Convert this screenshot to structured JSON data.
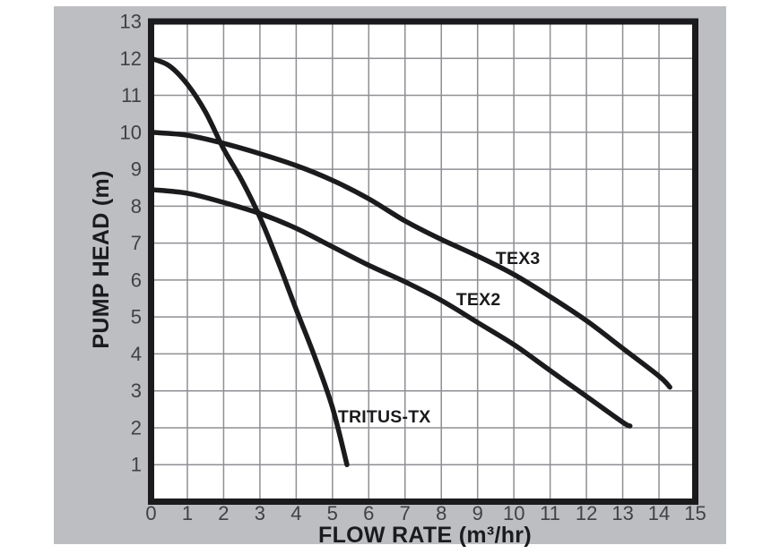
{
  "chart_data": {
    "type": "line",
    "title": "",
    "xlabel": "FLOW RATE (m³/hr)",
    "ylabel": "PUMP HEAD (m)",
    "xlim": [
      0,
      15
    ],
    "ylim": [
      0,
      13
    ],
    "x_ticks": [
      0,
      1,
      2,
      3,
      4,
      5,
      6,
      7,
      8,
      9,
      10,
      11,
      12,
      13,
      14,
      15
    ],
    "y_ticks": [
      1,
      2,
      3,
      4,
      5,
      6,
      7,
      8,
      9,
      10,
      11,
      12,
      13
    ],
    "grid": true,
    "legend_position": "inline-labels",
    "series": [
      {
        "name": "TRITUS-TX",
        "points": [
          [
            0,
            12
          ],
          [
            0.5,
            11.8
          ],
          [
            1,
            11.3
          ],
          [
            1.5,
            10.55
          ],
          [
            2,
            9.55
          ],
          [
            2.5,
            8.7
          ],
          [
            3,
            7.7
          ],
          [
            3.5,
            6.5
          ],
          [
            4,
            5.2
          ],
          [
            4.5,
            3.95
          ],
          [
            5,
            2.55
          ],
          [
            5.4,
            1.0
          ]
        ],
        "label_at": [
          5.15,
          2.14
        ]
      },
      {
        "name": "TEX2",
        "points": [
          [
            0,
            8.45
          ],
          [
            1,
            8.35
          ],
          [
            2,
            8.1
          ],
          [
            3,
            7.8
          ],
          [
            4,
            7.4
          ],
          [
            5,
            6.9
          ],
          [
            6,
            6.4
          ],
          [
            7,
            5.95
          ],
          [
            8,
            5.45
          ],
          [
            9,
            4.85
          ],
          [
            10,
            4.25
          ],
          [
            11,
            3.55
          ],
          [
            12,
            2.85
          ],
          [
            13,
            2.15
          ],
          [
            13.2,
            2.05
          ]
        ],
        "label_at": [
          8.41,
          5.32
        ]
      },
      {
        "name": "TEX3",
        "points": [
          [
            0,
            10
          ],
          [
            1,
            9.92
          ],
          [
            2,
            9.7
          ],
          [
            3,
            9.42
          ],
          [
            4,
            9.1
          ],
          [
            5,
            8.7
          ],
          [
            6,
            8.2
          ],
          [
            7,
            7.6
          ],
          [
            8,
            7.1
          ],
          [
            9,
            6.65
          ],
          [
            10,
            6.15
          ],
          [
            11,
            5.55
          ],
          [
            12,
            4.9
          ],
          [
            13,
            4.15
          ],
          [
            14,
            3.4
          ],
          [
            14.3,
            3.1
          ]
        ],
        "label_at": [
          9.5,
          6.43
        ]
      }
    ],
    "colors": {
      "panel_bg": "#bdbec2",
      "plot_bg": "#ffffff",
      "grid": "#8f8f94",
      "border": "#1b1b1e",
      "curve": "#1b1b1e",
      "tick_text": "#404045"
    }
  }
}
